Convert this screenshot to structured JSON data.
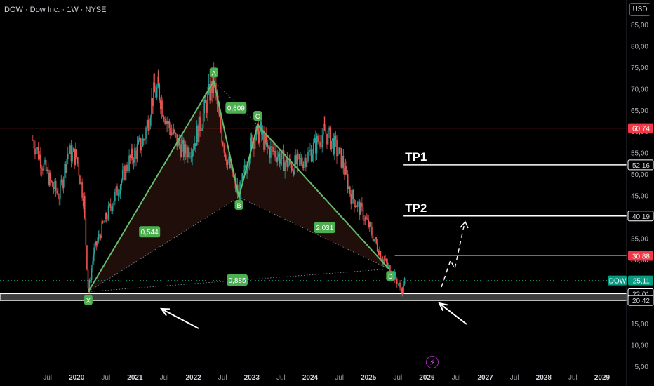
{
  "header": {
    "title": "DOW · Dow Inc. · 1W · NYSE",
    "currency": "USD"
  },
  "chart_data": {
    "type": "candlestick",
    "ylim": [
      4,
      90
    ],
    "y_ticks": [
      5,
      10,
      15,
      20,
      25,
      30,
      35,
      40,
      45,
      50,
      55,
      60,
      65,
      70,
      75,
      80,
      85
    ],
    "y_tick_labels": [
      "5,00",
      "10,00",
      "15,00",
      "20,00",
      "25,00",
      "30,00",
      "35,00",
      "40,00",
      "45,00",
      "50,00",
      "55,00",
      "60,00",
      "65,00",
      "70,00",
      "75,00",
      "80,00",
      "85,00"
    ],
    "x_range": [
      2019.0,
      2029.6
    ],
    "x_ticks": [
      {
        "x": 2019.5,
        "label": "Jul"
      },
      {
        "x": 2020.0,
        "label": "2020"
      },
      {
        "x": 2020.5,
        "label": "Jul"
      },
      {
        "x": 2021.0,
        "label": "2021"
      },
      {
        "x": 2021.5,
        "label": "Jul"
      },
      {
        "x": 2022.0,
        "label": "2022"
      },
      {
        "x": 2022.5,
        "label": "Jul"
      },
      {
        "x": 2023.0,
        "label": "2023"
      },
      {
        "x": 2023.5,
        "label": "Jul"
      },
      {
        "x": 2024.0,
        "label": "2024"
      },
      {
        "x": 2024.5,
        "label": "Jul"
      },
      {
        "x": 2025.0,
        "label": "2025"
      },
      {
        "x": 2025.5,
        "label": "Jul"
      },
      {
        "x": 2026.0,
        "label": "2026"
      },
      {
        "x": 2026.5,
        "label": "Jul"
      },
      {
        "x": 2027.0,
        "label": "2027"
      },
      {
        "x": 2027.5,
        "label": "Jul"
      },
      {
        "x": 2028.0,
        "label": "2028"
      },
      {
        "x": 2028.5,
        "label": "Jul"
      },
      {
        "x": 2029.0,
        "label": "2029"
      }
    ],
    "price_path": [
      [
        2019.25,
        58
      ],
      [
        2019.4,
        53
      ],
      [
        2019.55,
        48
      ],
      [
        2019.7,
        45
      ],
      [
        2019.85,
        55
      ],
      [
        2020.0,
        54
      ],
      [
        2020.12,
        44
      ],
      [
        2020.2,
        22.5
      ],
      [
        2020.3,
        32
      ],
      [
        2020.45,
        38
      ],
      [
        2020.6,
        43
      ],
      [
        2020.75,
        48
      ],
      [
        2020.9,
        53
      ],
      [
        2021.0,
        55
      ],
      [
        2021.15,
        58
      ],
      [
        2021.3,
        68
      ],
      [
        2021.4,
        70
      ],
      [
        2021.55,
        62
      ],
      [
        2021.7,
        58
      ],
      [
        2021.85,
        55
      ],
      [
        2022.0,
        57
      ],
      [
        2022.15,
        63
      ],
      [
        2022.3,
        70
      ],
      [
        2022.35,
        71.5
      ],
      [
        2022.45,
        62
      ],
      [
        2022.55,
        55
      ],
      [
        2022.7,
        48
      ],
      [
        2022.78,
        45
      ],
      [
        2022.9,
        52
      ],
      [
        2023.0,
        58
      ],
      [
        2023.15,
        60
      ],
      [
        2023.25,
        56
      ],
      [
        2023.4,
        55
      ],
      [
        2023.55,
        53
      ],
      [
        2023.7,
        52
      ],
      [
        2023.85,
        53
      ],
      [
        2024.0,
        55
      ],
      [
        2024.15,
        58
      ],
      [
        2024.25,
        60
      ],
      [
        2024.4,
        57
      ],
      [
        2024.55,
        53
      ],
      [
        2024.7,
        45
      ],
      [
        2024.85,
        42
      ],
      [
        2025.0,
        38
      ],
      [
        2025.15,
        33
      ],
      [
        2025.25,
        30
      ],
      [
        2025.35,
        28
      ],
      [
        2025.45,
        26
      ],
      [
        2025.52,
        24
      ],
      [
        2025.58,
        22.5
      ],
      [
        2025.62,
        25.1
      ]
    ],
    "pattern": {
      "points": [
        {
          "label": "X",
          "x": 2020.2,
          "y": 22.5
        },
        {
          "label": "A",
          "x": 2022.35,
          "y": 71.8
        },
        {
          "label": "B",
          "x": 2022.78,
          "y": 44.6
        },
        {
          "label": "C",
          "x": 2023.1,
          "y": 61.5
        },
        {
          "label": "D",
          "x": 2025.35,
          "y": 27.8
        }
      ],
      "ratios": [
        {
          "value": "0,544",
          "x": 2021.25,
          "y": 36.5
        },
        {
          "value": "0,609",
          "x": 2022.73,
          "y": 65.5
        },
        {
          "value": "2,031",
          "x": 2024.25,
          "y": 37.5
        },
        {
          "value": "0,885",
          "x": 2022.75,
          "y": 25.2
        }
      ]
    },
    "levels": [
      {
        "name": "resistance",
        "value": 60.74,
        "label": "60,74",
        "color": "#f23645"
      },
      {
        "name": "tp1",
        "value": 52.16,
        "label": "52,16",
        "color": "#ffffff",
        "text": "TP1"
      },
      {
        "name": "tp2",
        "value": 40.19,
        "label": "40,19",
        "color": "#ffffff",
        "text": "TP2"
      },
      {
        "name": "stop",
        "value": 30.88,
        "label": "30,88",
        "color": "#f23645"
      },
      {
        "name": "current",
        "value": 25.11,
        "label": "25,11",
        "color": "#089981",
        "ticker": "DOW"
      },
      {
        "name": "zone-top",
        "value": 22.01,
        "label": "22,01",
        "color": "#ffffff"
      },
      {
        "name": "zone-bottom",
        "value": 20.42,
        "label": "20,42",
        "color": "#ffffff"
      }
    ],
    "colors": {
      "background": "#000000",
      "up": "#26a69a",
      "down": "#ef5350",
      "pattern_line": "#66bb6a",
      "pattern_fill": "#3a1a14"
    }
  }
}
